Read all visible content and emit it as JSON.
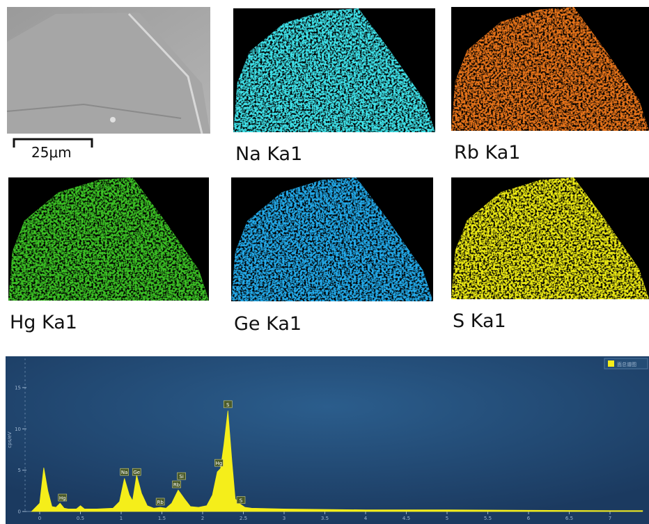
{
  "sem": {
    "scale_bar": "25μm"
  },
  "panels": [
    {
      "label": "Na Ka1",
      "color": "#3fe3ea"
    },
    {
      "label": "Rb Ka1",
      "color": "#e8741a"
    },
    {
      "label": "Hg Ka1",
      "color": "#3cc325"
    },
    {
      "label": "Ge Ka1",
      "color": "#23aaea"
    },
    {
      "label": "S Ka1",
      "color": "#ecea14"
    }
  ],
  "chart_data": {
    "type": "area",
    "y_label": "cps/eV",
    "x": [
      -0.1,
      0,
      0.05,
      0.1,
      0.15,
      0.2,
      0.25,
      0.3,
      0.35,
      0.45,
      0.5,
      0.55,
      0.7,
      0.9,
      0.98,
      1.04,
      1.1,
      1.14,
      1.19,
      1.25,
      1.32,
      1.4,
      1.48,
      1.55,
      1.62,
      1.7,
      1.78,
      1.85,
      1.95,
      2.05,
      2.12,
      2.18,
      2.22,
      2.26,
      2.31,
      2.36,
      2.4,
      2.46,
      2.52,
      2.6,
      3,
      4,
      5,
      6,
      7,
      7.4
    ],
    "series": [
      {
        "name": "面总谱图",
        "color": "#f5ee1a",
        "values": [
          0,
          1,
          5.3,
          2.5,
          0.6,
          0.5,
          1,
          0.4,
          0.3,
          0.3,
          0.7,
          0.3,
          0.3,
          0.4,
          1.2,
          4,
          2,
          1.3,
          4.4,
          2.2,
          0.7,
          0.4,
          0.5,
          0.4,
          1,
          2.6,
          1.5,
          0.6,
          0.5,
          0.7,
          2,
          4.8,
          5.2,
          8,
          12.2,
          6,
          1.5,
          0.9,
          0.5,
          0.4,
          0.3,
          0.2,
          0.2,
          0.15,
          0.1,
          0.1
        ]
      }
    ],
    "xlim": [
      -0.2,
      7.4
    ],
    "ylim": [
      0,
      18.5
    ],
    "xticks": [
      0,
      0.5,
      1,
      1.5,
      2,
      2.5,
      3,
      3.5,
      4,
      4.5,
      5,
      5.5,
      6,
      6.5,
      7
    ],
    "yticks": [
      0,
      5,
      10,
      15
    ],
    "annotations": [
      {
        "text": "Hg",
        "x": 0.28,
        "y": 1.6
      },
      {
        "text": "Na",
        "x": 1.04,
        "y": 4.7
      },
      {
        "text": "Ge",
        "x": 1.19,
        "y": 4.7
      },
      {
        "text": "Rb",
        "x": 1.48,
        "y": 1.1
      },
      {
        "text": "Si",
        "x": 1.74,
        "y": 4.2
      },
      {
        "text": "Rb",
        "x": 1.68,
        "y": 3.2
      },
      {
        "text": "Hg",
        "x": 2.2,
        "y": 5.8
      },
      {
        "text": "S",
        "x": 2.31,
        "y": 12.9
      },
      {
        "text": "S",
        "x": 2.47,
        "y": 1.3
      }
    ]
  }
}
